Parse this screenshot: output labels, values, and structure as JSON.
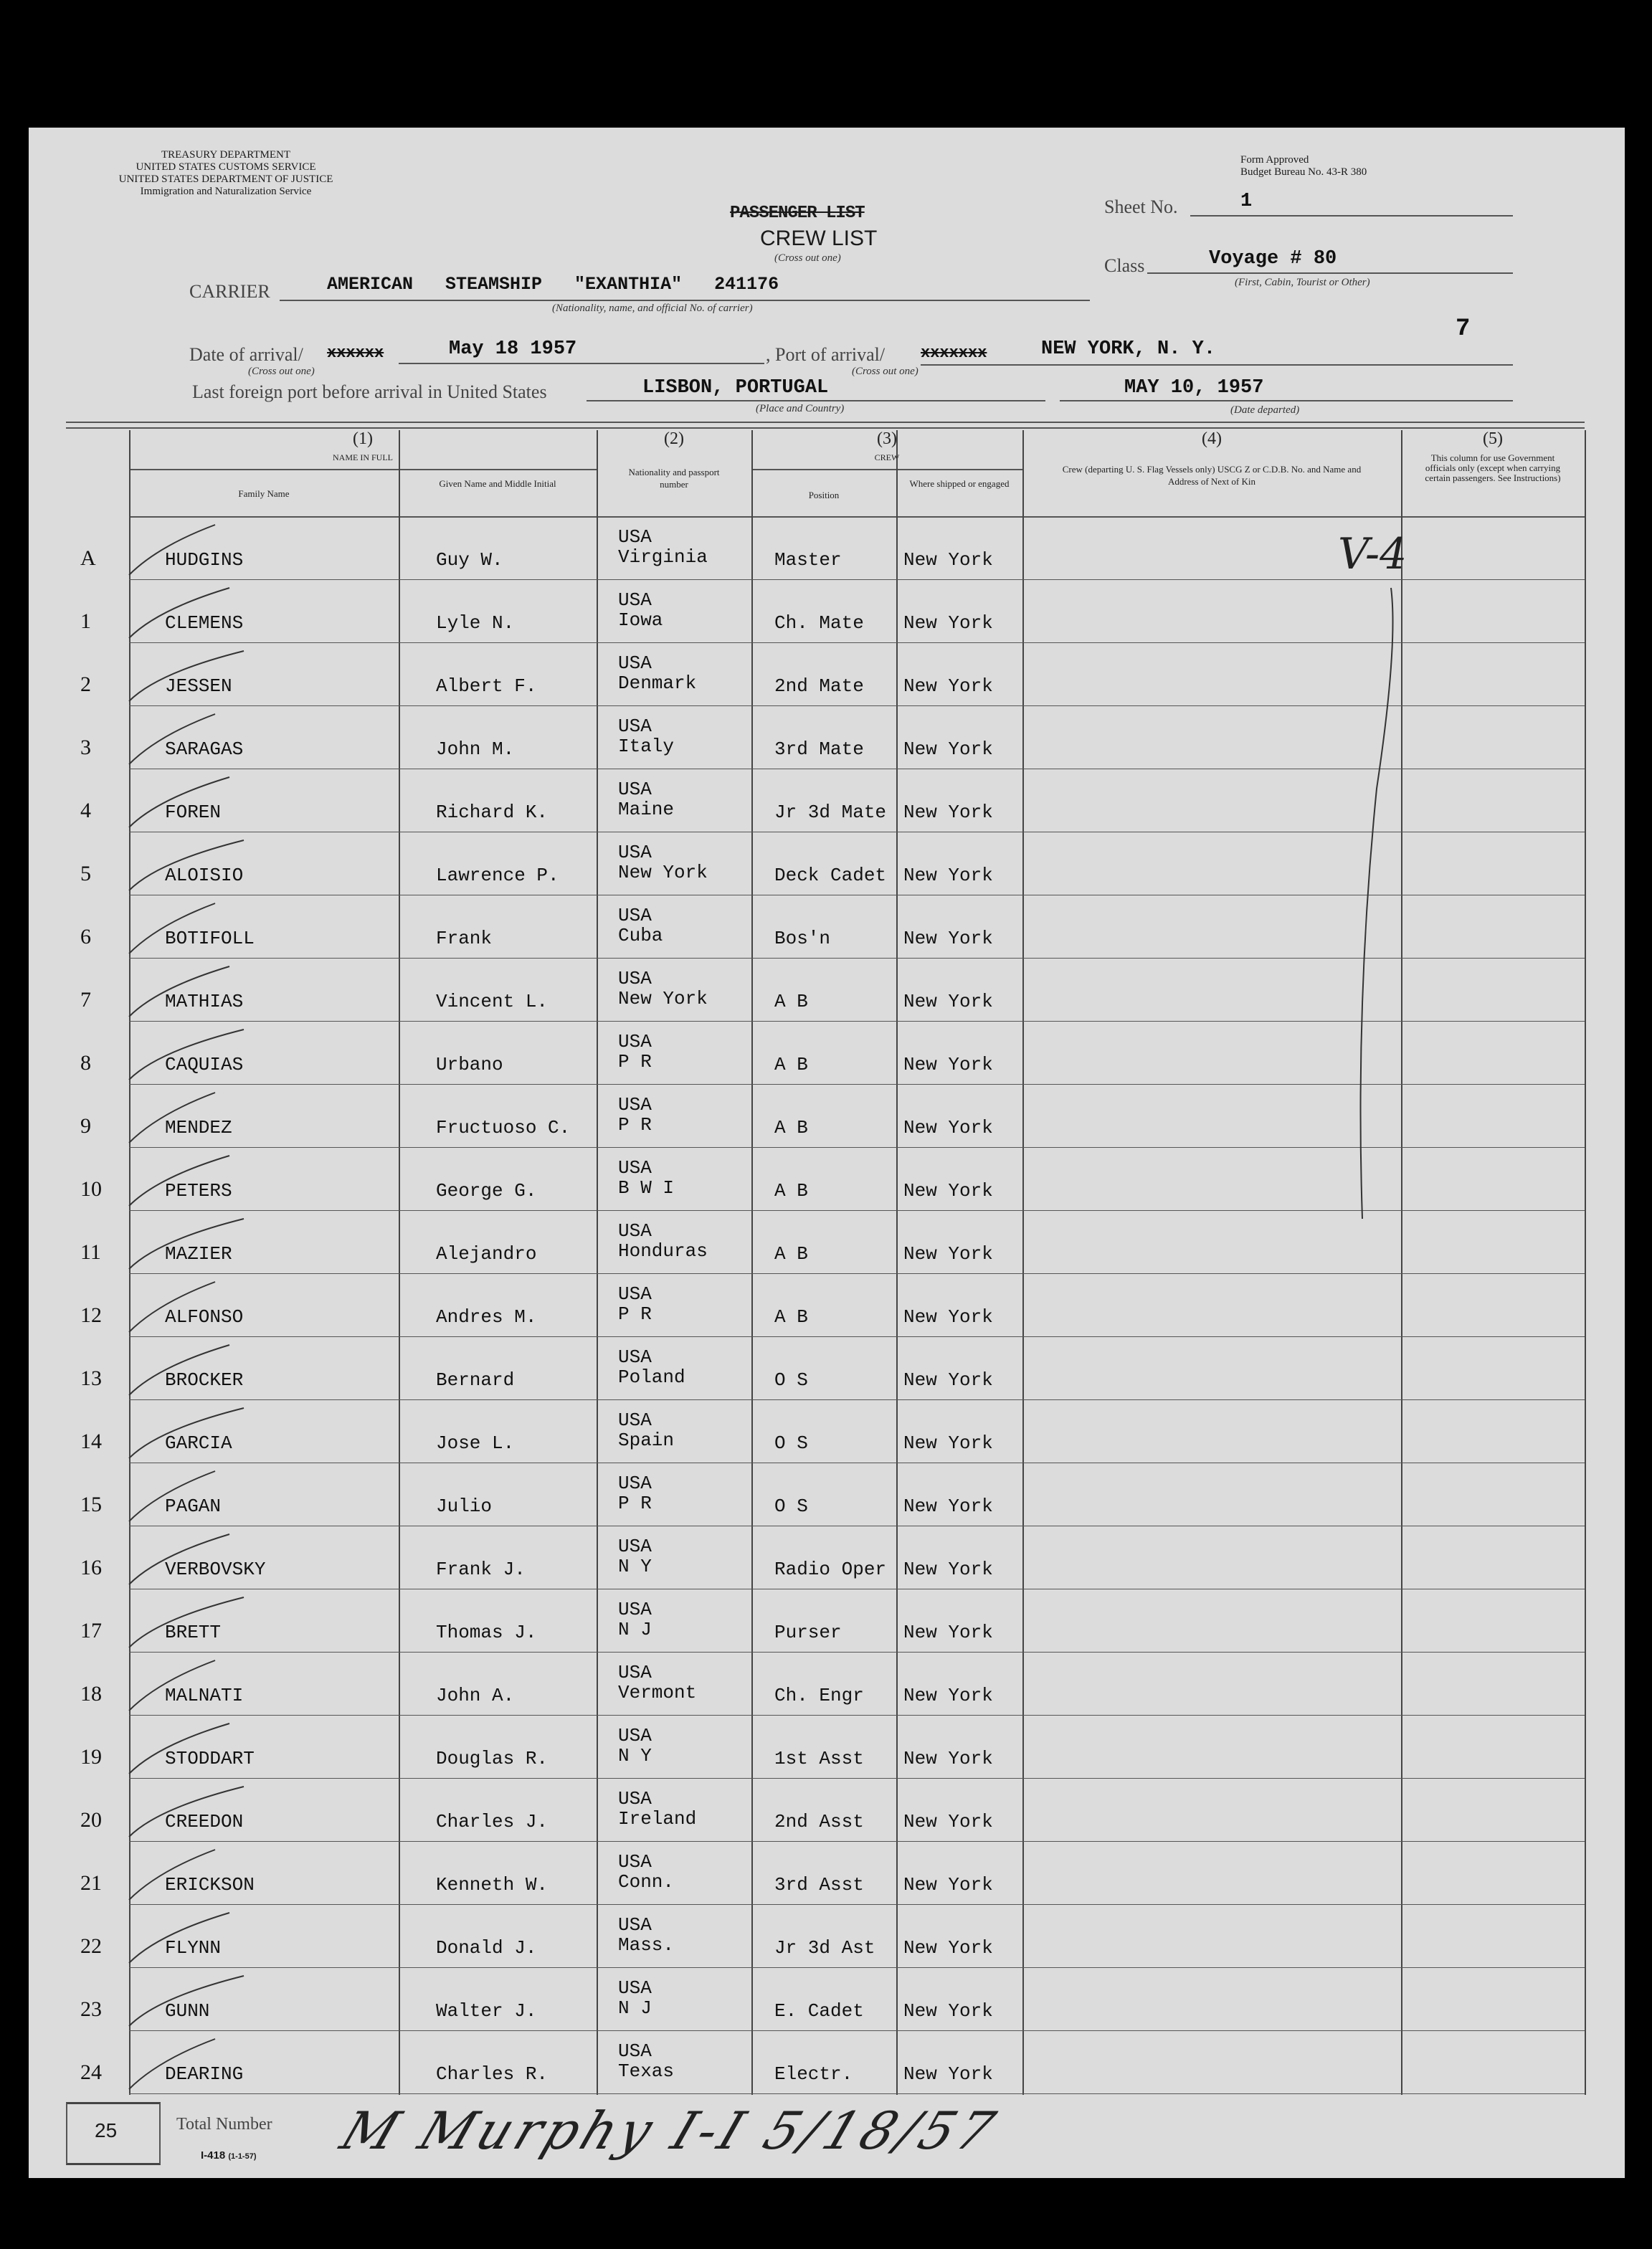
{
  "agency": {
    "line1": "TREASURY DEPARTMENT",
    "line2": "UNITED STATES CUSTOMS SERVICE",
    "line3": "UNITED STATES DEPARTMENT OF JUSTICE",
    "line4": "Immigration and Naturalization Service"
  },
  "form_approval": {
    "line1": "Form Approved",
    "line2": "Budget Bureau No. 43-R 380"
  },
  "title": {
    "crossed": "PASSENGER LIST",
    "main": "CREW LIST",
    "note": "(Cross out one)"
  },
  "sheet": {
    "label": "Sheet No.",
    "value": "1"
  },
  "class": {
    "label": "Class",
    "value": "Voyage # 80",
    "note": "(First, Cabin, Tourist or Other)"
  },
  "carrier": {
    "label": "CARRIER",
    "value": "AMERICAN   STEAMSHIP   \"EXANTHIA\"   241176",
    "note": "(Nationality, name, and official No. of carrier)"
  },
  "margin_mark": "7",
  "arrival": {
    "date_label": "Date of arrival/",
    "date_crossed": "xxxxxx",
    "date_value": "May 18 1957",
    "date_note": "(Cross out one)",
    "port_label": ", Port of arrival/",
    "port_crossed": "xxxxxxx",
    "port_value": "NEW YORK, N. Y.",
    "port_note": "(Cross out one)"
  },
  "last_port": {
    "label": "Last foreign port before arrival in United States",
    "value": "LISBON, PORTUGAL",
    "note": "(Place and Country)",
    "departed": "MAY 10, 1957",
    "departed_note": "(Date departed)"
  },
  "columns": {
    "c1_num": "(1)",
    "c1_title": "NAME IN FULL",
    "family": "Family Name",
    "given": "Given Name and Middle Initial",
    "c2_num": "(2)",
    "c2_title": "Nationality and passport number",
    "c3_num": "(3)",
    "c3_title": "CREW",
    "position": "Position",
    "shipped": "Where shipped or engaged",
    "c4_num": "(4)",
    "c4_title": "Crew (departing U. S. Flag Vessels only) USCG Z or C.D.B. No. and Name and Address of Next of Kin",
    "c5_num": "(5)",
    "c5_title": "This column for use Government officials only (except when carrying certain passengers. See Instructions)"
  },
  "col5_mark": "V-4",
  "rows": [
    {
      "label": "A",
      "family": "HUDGINS",
      "given": "Guy W.",
      "nat1": "USA",
      "nat2": "Virginia",
      "position": "Master",
      "shipped": "New York"
    },
    {
      "label": "1",
      "family": "CLEMENS",
      "given": "Lyle N.",
      "nat1": "USA",
      "nat2": "Iowa",
      "position": "Ch. Mate",
      "shipped": "New York"
    },
    {
      "label": "2",
      "family": "JESSEN",
      "given": "Albert F.",
      "nat1": "USA",
      "nat2": "Denmark",
      "position": "2nd Mate",
      "shipped": "New York"
    },
    {
      "label": "3",
      "family": "SARAGAS",
      "given": "John M.",
      "nat1": "USA",
      "nat2": "Italy",
      "position": "3rd Mate",
      "shipped": "New York"
    },
    {
      "label": "4",
      "family": "FOREN",
      "given": "Richard K.",
      "nat1": "USA",
      "nat2": "Maine",
      "position": "Jr 3d Mate",
      "shipped": "New York"
    },
    {
      "label": "5",
      "family": "ALOISIO",
      "given": "Lawrence P.",
      "nat1": "USA",
      "nat2": "New York",
      "position": "Deck Cadet",
      "shipped": "New York"
    },
    {
      "label": "6",
      "family": "BOTIFOLL",
      "given": "Frank",
      "nat1": "USA",
      "nat2": "Cuba",
      "position": "Bos'n",
      "shipped": "New York"
    },
    {
      "label": "7",
      "family": "MATHIAS",
      "given": "Vincent L.",
      "nat1": "USA",
      "nat2": "New York",
      "position": "A B",
      "shipped": "New York"
    },
    {
      "label": "8",
      "family": "CAQUIAS",
      "given": "Urbano",
      "nat1": "USA",
      "nat2": "P R",
      "position": "A B",
      "shipped": "New York"
    },
    {
      "label": "9",
      "family": "MENDEZ",
      "given": "Fructuoso C.",
      "nat1": "USA",
      "nat2": "P R",
      "position": "A B",
      "shipped": "New York"
    },
    {
      "label": "10",
      "family": "PETERS",
      "given": "George G.",
      "nat1": "USA",
      "nat2": "B W I",
      "position": "A B",
      "shipped": "New York"
    },
    {
      "label": "11",
      "family": "MAZIER",
      "given": "Alejandro",
      "nat1": "USA",
      "nat2": "Honduras",
      "position": "A B",
      "shipped": "New York"
    },
    {
      "label": "12",
      "family": "ALFONSO",
      "given": "Andres M.",
      "nat1": "USA",
      "nat2": "P R",
      "position": "A B",
      "shipped": "New York"
    },
    {
      "label": "13",
      "family": "BROCKER",
      "given": "Bernard",
      "nat1": "USA",
      "nat2": "Poland",
      "position": "O S",
      "shipped": "New York"
    },
    {
      "label": "14",
      "family": "GARCIA",
      "given": "Jose L.",
      "nat1": "USA",
      "nat2": "Spain",
      "position": "O S",
      "shipped": "New York"
    },
    {
      "label": "15",
      "family": "PAGAN",
      "given": "Julio",
      "nat1": "USA",
      "nat2": "P R",
      "position": "O S",
      "shipped": "New York"
    },
    {
      "label": "16",
      "family": "VERBOVSKY",
      "given": "Frank J.",
      "nat1": "USA",
      "nat2": "N Y",
      "position": "Radio Oper",
      "shipped": "New York"
    },
    {
      "label": "17",
      "family": "BRETT",
      "given": "Thomas J.",
      "nat1": "USA",
      "nat2": "N J",
      "position": "Purser",
      "shipped": "New York"
    },
    {
      "label": "18",
      "family": "MALNATI",
      "given": "John A.",
      "nat1": "USA",
      "nat2": "Vermont",
      "position": "Ch. Engr",
      "shipped": "New York"
    },
    {
      "label": "19",
      "family": "STODDART",
      "given": "Douglas R.",
      "nat1": "USA",
      "nat2": "N Y",
      "position": "1st Asst",
      "shipped": "New York"
    },
    {
      "label": "20",
      "family": "CREEDON",
      "given": "Charles J.",
      "nat1": "USA",
      "nat2": "Ireland",
      "position": "2nd Asst",
      "shipped": "New York"
    },
    {
      "label": "21",
      "family": "ERICKSON",
      "given": "Kenneth W.",
      "nat1": "USA",
      "nat2": "Conn.",
      "position": "3rd Asst",
      "shipped": "New York"
    },
    {
      "label": "22",
      "family": "FLYNN",
      "given": "Donald J.",
      "nat1": "USA",
      "nat2": "Mass.",
      "position": "Jr 3d Ast",
      "shipped": "New York"
    },
    {
      "label": "23",
      "family": "GUNN",
      "given": "Walter J.",
      "nat1": "USA",
      "nat2": "N J",
      "position": "E. Cadet",
      "shipped": "New York"
    },
    {
      "label": "24",
      "family": "DEARING",
      "given": "Charles R.",
      "nat1": "USA",
      "nat2": "Texas",
      "position": "Electr.",
      "shipped": "New York"
    }
  ],
  "footer": {
    "total": "25",
    "total_label": "Total Number",
    "form_no": "I-418",
    "form_date": "(1-1-57)",
    "signature": "M Murphy I-I 5/18/57"
  }
}
